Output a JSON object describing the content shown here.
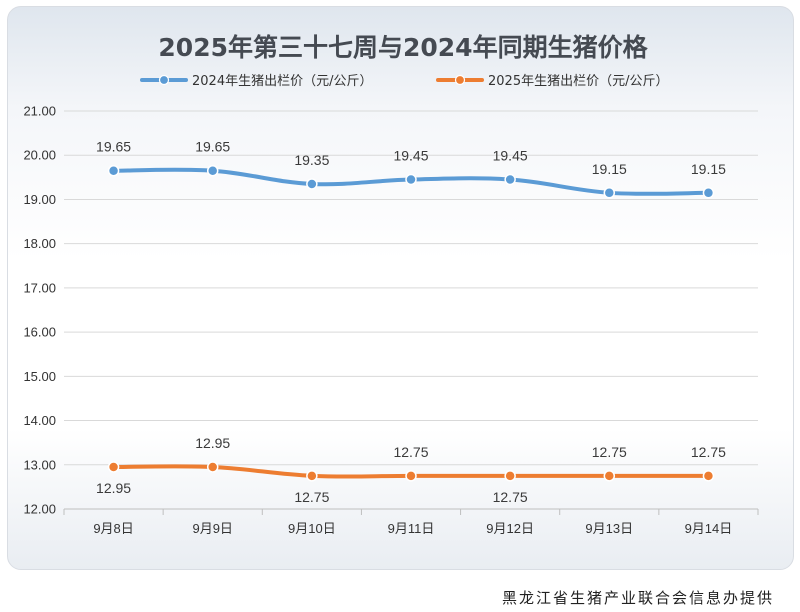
{
  "chart_data": {
    "type": "line",
    "title": "2025年第三十七周与2024年同期生猪价格",
    "categories": [
      "9月8日",
      "9月9日",
      "9月10日",
      "9月11日",
      "9月12日",
      "9月13日",
      "9月14日"
    ],
    "series": [
      {
        "name": "2024年生猪出栏价（元/公斤）",
        "color": "#5b9bd5",
        "values": [
          19.65,
          19.65,
          19.35,
          19.45,
          19.45,
          19.15,
          19.15
        ],
        "labels": [
          "19.65",
          "19.65",
          "19.35",
          "19.45",
          "19.45",
          "19.15",
          "19.15"
        ]
      },
      {
        "name": "2025年生猪出栏价（元/公斤）",
        "color": "#ed7d31",
        "values": [
          12.95,
          12.95,
          12.75,
          12.75,
          12.75,
          12.75,
          12.75
        ],
        "labels": [
          "12.95",
          "12.95",
          "12.75",
          "12.75",
          "12.75",
          "12.75",
          "12.75"
        ]
      }
    ],
    "ylim": [
      12,
      21
    ],
    "yticks": [
      "12.00",
      "13.00",
      "14.00",
      "15.00",
      "16.00",
      "17.00",
      "18.00",
      "19.00",
      "20.00",
      "21.00"
    ],
    "grid": true,
    "legend": "top"
  },
  "footer": {
    "credit": "黑龙江省生猪产业联合会信息办提供"
  }
}
